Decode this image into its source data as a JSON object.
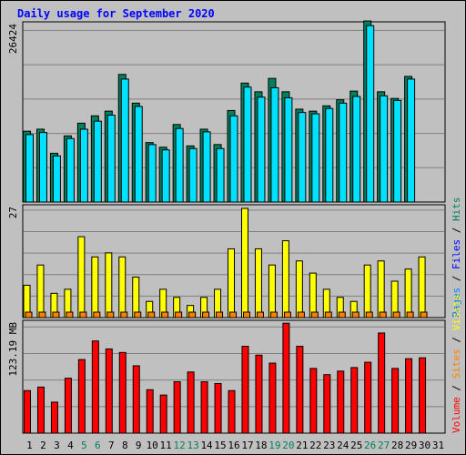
{
  "title": "Daily usage for September 2020",
  "chart_data": [
    {
      "type": "bar",
      "panel": "hits-files-pages",
      "ylabel": "26424",
      "ymax": 26424,
      "grid": true,
      "categories": [
        "1",
        "2",
        "3",
        "4",
        "5",
        "6",
        "7",
        "8",
        "9",
        "10",
        "11",
        "12",
        "13",
        "14",
        "15",
        "16",
        "17",
        "18",
        "19",
        "20",
        "21",
        "22",
        "23",
        "24",
        "25",
        "26",
        "27",
        "28",
        "29",
        "30",
        "31"
      ],
      "series": [
        {
          "name": "Hits",
          "color": "#00805c",
          "values": [
            10600,
            10900,
            7300,
            9900,
            11800,
            12900,
            13600,
            19100,
            14800,
            8900,
            8200,
            11600,
            8400,
            10900,
            8600,
            13700,
            17800,
            16500,
            18500,
            16500,
            13900,
            13600,
            14400,
            15300,
            16600,
            27100,
            16500,
            15500,
            18800,
            null,
            null
          ]
        },
        {
          "name": "Files",
          "color": "#00e0ff",
          "values": [
            10100,
            10400,
            6900,
            9500,
            10900,
            12100,
            13000,
            18400,
            14300,
            8600,
            7800,
            11000,
            8000,
            10500,
            8000,
            12900,
            17200,
            15700,
            17100,
            15600,
            13400,
            13200,
            14000,
            14800,
            15800,
            26400,
            15900,
            15200,
            18400,
            null,
            null
          ]
        }
      ]
    },
    {
      "type": "bar",
      "panel": "visits-sites",
      "ylabel": "27",
      "ymax": 27,
      "grid": true,
      "categories": [
        "1",
        "2",
        "3",
        "4",
        "5",
        "6",
        "7",
        "8",
        "9",
        "10",
        "11",
        "12",
        "13",
        "14",
        "15",
        "16",
        "17",
        "18",
        "19",
        "20",
        "21",
        "22",
        "23",
        "24",
        "25",
        "26",
        "27",
        "28",
        "29",
        "30",
        "31"
      ],
      "series": [
        {
          "name": "Visits",
          "color": "#ffff00",
          "values": [
            8,
            13,
            6,
            7,
            20,
            15,
            16,
            15,
            10,
            4,
            7,
            5,
            3,
            5,
            7,
            17,
            27,
            17,
            13,
            19,
            14,
            11,
            7,
            5,
            4,
            13,
            14,
            9,
            12,
            15,
            null
          ]
        },
        {
          "name": "Sites",
          "color": "#ff8000",
          "values": [
            1,
            1,
            1,
            1,
            1,
            1,
            1,
            1,
            1,
            1,
            1,
            1,
            1,
            1,
            1,
            1,
            1,
            1,
            1,
            1,
            1,
            1,
            1,
            1,
            1,
            1,
            1,
            1,
            1,
            1,
            null
          ]
        }
      ]
    },
    {
      "type": "bar",
      "panel": "volume",
      "ylabel": "123.19 MB",
      "ymax": 123.19,
      "grid": true,
      "categories": [
        "1",
        "2",
        "3",
        "4",
        "5",
        "6",
        "7",
        "8",
        "9",
        "10",
        "11",
        "12",
        "13",
        "14",
        "15",
        "16",
        "17",
        "18",
        "19",
        "20",
        "21",
        "22",
        "23",
        "24",
        "25",
        "26",
        "27",
        "28",
        "29",
        "30",
        "31"
      ],
      "series": [
        {
          "name": "Volume",
          "color": "#ff0000",
          "values": [
            48,
            52,
            35,
            62,
            83,
            104,
            95,
            91,
            76,
            49,
            43,
            58,
            69,
            58,
            56,
            48,
            98,
            88,
            79,
            124,
            98,
            73,
            66,
            70,
            74,
            80,
            113,
            73,
            84,
            85,
            null
          ]
        }
      ]
    }
  ],
  "x_axis": {
    "labels": [
      "1",
      "2",
      "3",
      "4",
      "5",
      "6",
      "7",
      "8",
      "9",
      "10",
      "11",
      "12",
      "13",
      "14",
      "15",
      "16",
      "17",
      "18",
      "19",
      "20",
      "21",
      "22",
      "23",
      "24",
      "25",
      "26",
      "27",
      "28",
      "29",
      "30",
      "31"
    ],
    "weekend_days": [
      "5",
      "6",
      "12",
      "13",
      "19",
      "20",
      "26",
      "27"
    ],
    "color_weekday": "#000000",
    "color_weekend": "#00805c"
  },
  "right_legends": {
    "top": [
      {
        "text": "Pages",
        "color": "#0080ff"
      },
      {
        "text": "Files",
        "color": "#0000ff"
      },
      {
        "text": "Hits",
        "color": "#00805c"
      }
    ],
    "bottom": [
      {
        "text": "Volume",
        "color": "#ff0000"
      },
      {
        "text": "Sites",
        "color": "#ff8000"
      },
      {
        "text": "Visits",
        "color": "#ffff00"
      }
    ],
    "separator": " / ",
    "separator_color": "#000000"
  }
}
